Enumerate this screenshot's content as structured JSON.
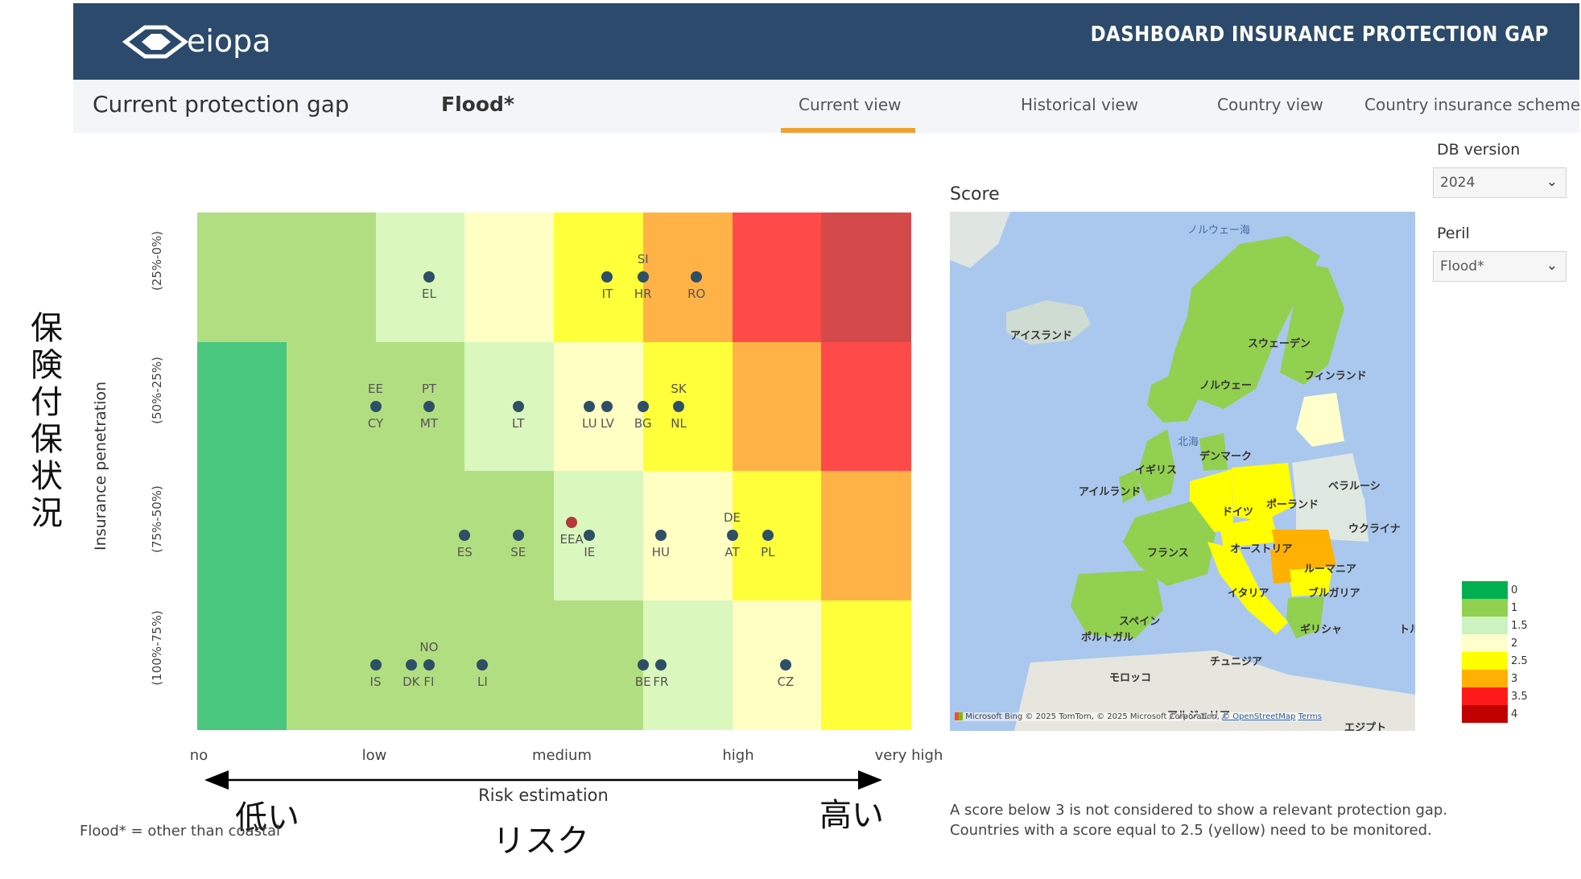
{
  "header": {
    "title": "DASHBOARD INSURANCE PROTECTION GAP",
    "logo_text": "eiopa"
  },
  "nav": {
    "page_title": "Current protection gap",
    "peril": "Flood*",
    "tabs": [
      {
        "label": "Current view",
        "active": true
      },
      {
        "label": "Historical view",
        "active": false
      },
      {
        "label": "Country view",
        "active": false
      },
      {
        "label": "Country insurance scheme",
        "active": false
      }
    ]
  },
  "filters": {
    "db_version_label": "DB version",
    "db_version_value": "2024",
    "peril_label": "Peril",
    "peril_value": "Flood*"
  },
  "annotations": {
    "y_japanese": "保険付保状況",
    "low_japanese": "低い",
    "high_japanese": "高い",
    "x_japanese": "リスク"
  },
  "chart_data": {
    "type": "heatmap",
    "ylabel": "Insurance penetration",
    "xlabel": "Risk estimation",
    "x_ticks": [
      "no",
      "low",
      "medium",
      "high",
      "very high"
    ],
    "rows": [
      "(25%-0%)",
      "(50%-25%)",
      "(75%-50%)",
      "(100%-75%)"
    ],
    "scores": [
      [
        1,
        1,
        1.5,
        2,
        2.5,
        3,
        3.5,
        4
      ],
      [
        0,
        1,
        1,
        1.5,
        2,
        2.5,
        3,
        3.5
      ],
      [
        0,
        1,
        1,
        1,
        1.5,
        2,
        2.5,
        3
      ],
      [
        0,
        1,
        1,
        1,
        1,
        1.5,
        2,
        2.5
      ]
    ],
    "countries": [
      {
        "code": "EL",
        "risk": 2.6,
        "row": 0
      },
      {
        "code": "IT",
        "risk": 4.6,
        "row": 0
      },
      {
        "code": "HR",
        "risk": 5.0,
        "row": 0
      },
      {
        "code": "SI",
        "risk": 5.0,
        "row": 0
      },
      {
        "code": "RO",
        "risk": 5.6,
        "row": 0
      },
      {
        "code": "CY",
        "risk": 2.0,
        "row": 1
      },
      {
        "code": "EE",
        "risk": 2.0,
        "row": 1
      },
      {
        "code": "MT",
        "risk": 2.6,
        "row": 1
      },
      {
        "code": "PT",
        "risk": 2.6,
        "row": 1
      },
      {
        "code": "LT",
        "risk": 3.6,
        "row": 1
      },
      {
        "code": "LU",
        "risk": 4.4,
        "row": 1
      },
      {
        "code": "LV",
        "risk": 4.6,
        "row": 1
      },
      {
        "code": "BG",
        "risk": 5.0,
        "row": 1
      },
      {
        "code": "NL",
        "risk": 5.4,
        "row": 1
      },
      {
        "code": "SK",
        "risk": 5.4,
        "row": 1
      },
      {
        "code": "EEA",
        "risk": 4.2,
        "row": 1.9,
        "highlight": true
      },
      {
        "code": "ES",
        "risk": 3.0,
        "row": 2
      },
      {
        "code": "SE",
        "risk": 3.6,
        "row": 2
      },
      {
        "code": "IE",
        "risk": 4.4,
        "row": 2
      },
      {
        "code": "HU",
        "risk": 5.2,
        "row": 2
      },
      {
        "code": "AT",
        "risk": 6.0,
        "row": 2
      },
      {
        "code": "DE",
        "risk": 6.0,
        "row": 2
      },
      {
        "code": "PL",
        "risk": 6.4,
        "row": 2
      },
      {
        "code": "IS",
        "risk": 2.0,
        "row": 3
      },
      {
        "code": "DK",
        "risk": 2.4,
        "row": 3
      },
      {
        "code": "FI",
        "risk": 2.6,
        "row": 3
      },
      {
        "code": "NO",
        "risk": 2.6,
        "row": 3
      },
      {
        "code": "LI",
        "risk": 3.2,
        "row": 3
      },
      {
        "code": "BE",
        "risk": 5.0,
        "row": 3
      },
      {
        "code": "FR",
        "risk": 5.2,
        "row": 3
      },
      {
        "code": "CZ",
        "risk": 6.6,
        "row": 3
      }
    ]
  },
  "map": {
    "title": "Score",
    "labels": [
      "ノルウェー海",
      "アイスランド",
      "スウェーデン",
      "フィンランド",
      "ノルウェー",
      "北海",
      "デンマーク",
      "イギリス",
      "アイルランド",
      "ドイツ",
      "ポーランド",
      "ベラルーシ",
      "ウクライナ",
      "フランス",
      "オーストリア",
      "ルーマニア",
      "イタリア",
      "ブルガリア",
      "スペイン",
      "ポルトガル",
      "ギリシャ",
      "トル",
      "モロッコ",
      "チュニジア",
      "アルジェリア",
      "エジプト"
    ],
    "attribution": "© 2025 TomTom, © 2025 Microsoft Corporation,",
    "osm_link": "© OpenStreetMap",
    "terms_link": "Terms",
    "bing_label": "Microsoft Bing"
  },
  "legend": {
    "items": [
      {
        "label": "0",
        "color": "#00b050"
      },
      {
        "label": "1",
        "color": "#92d050"
      },
      {
        "label": "1.5",
        "color": "#ccf2c0"
      },
      {
        "label": "2",
        "color": "#ffffcc"
      },
      {
        "label": "2.5",
        "color": "#ffff00"
      },
      {
        "label": "3",
        "color": "#ffb000"
      },
      {
        "label": "3.5",
        "color": "#ff1a1a"
      },
      {
        "label": "4",
        "color": "#c00000"
      }
    ]
  },
  "notes": {
    "flood_footnote": "Flood* = other than coastal",
    "score_note_1": "A score below 3 is not considered to show a relevant protection gap.",
    "score_note_2": "Countries with a score equal to 2.5 (yellow) need to be monitored."
  }
}
